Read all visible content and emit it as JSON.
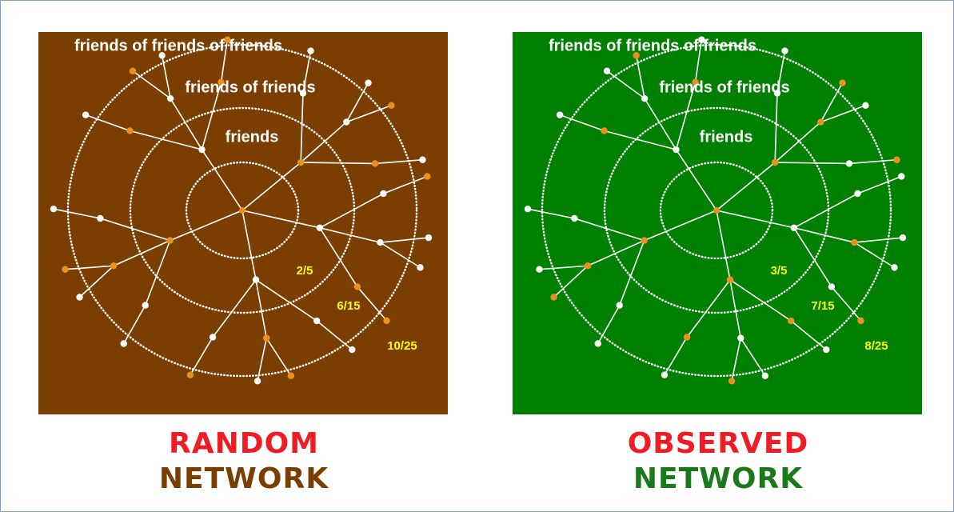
{
  "panels": [
    {
      "title": "RANDOM",
      "subtitle": "NETWORK",
      "rings": [
        "friends of friends of friends",
        "friends of friends",
        "friends"
      ],
      "fractions": [
        "2/5",
        "6/15",
        "10/25"
      ]
    },
    {
      "title": "OBSERVED",
      "subtitle": "NETWORK",
      "rings": [
        "friends of friends of friends",
        "friends of friends",
        "friends"
      ],
      "fractions": [
        "3/5",
        "7/15",
        "8/25"
      ]
    }
  ]
}
